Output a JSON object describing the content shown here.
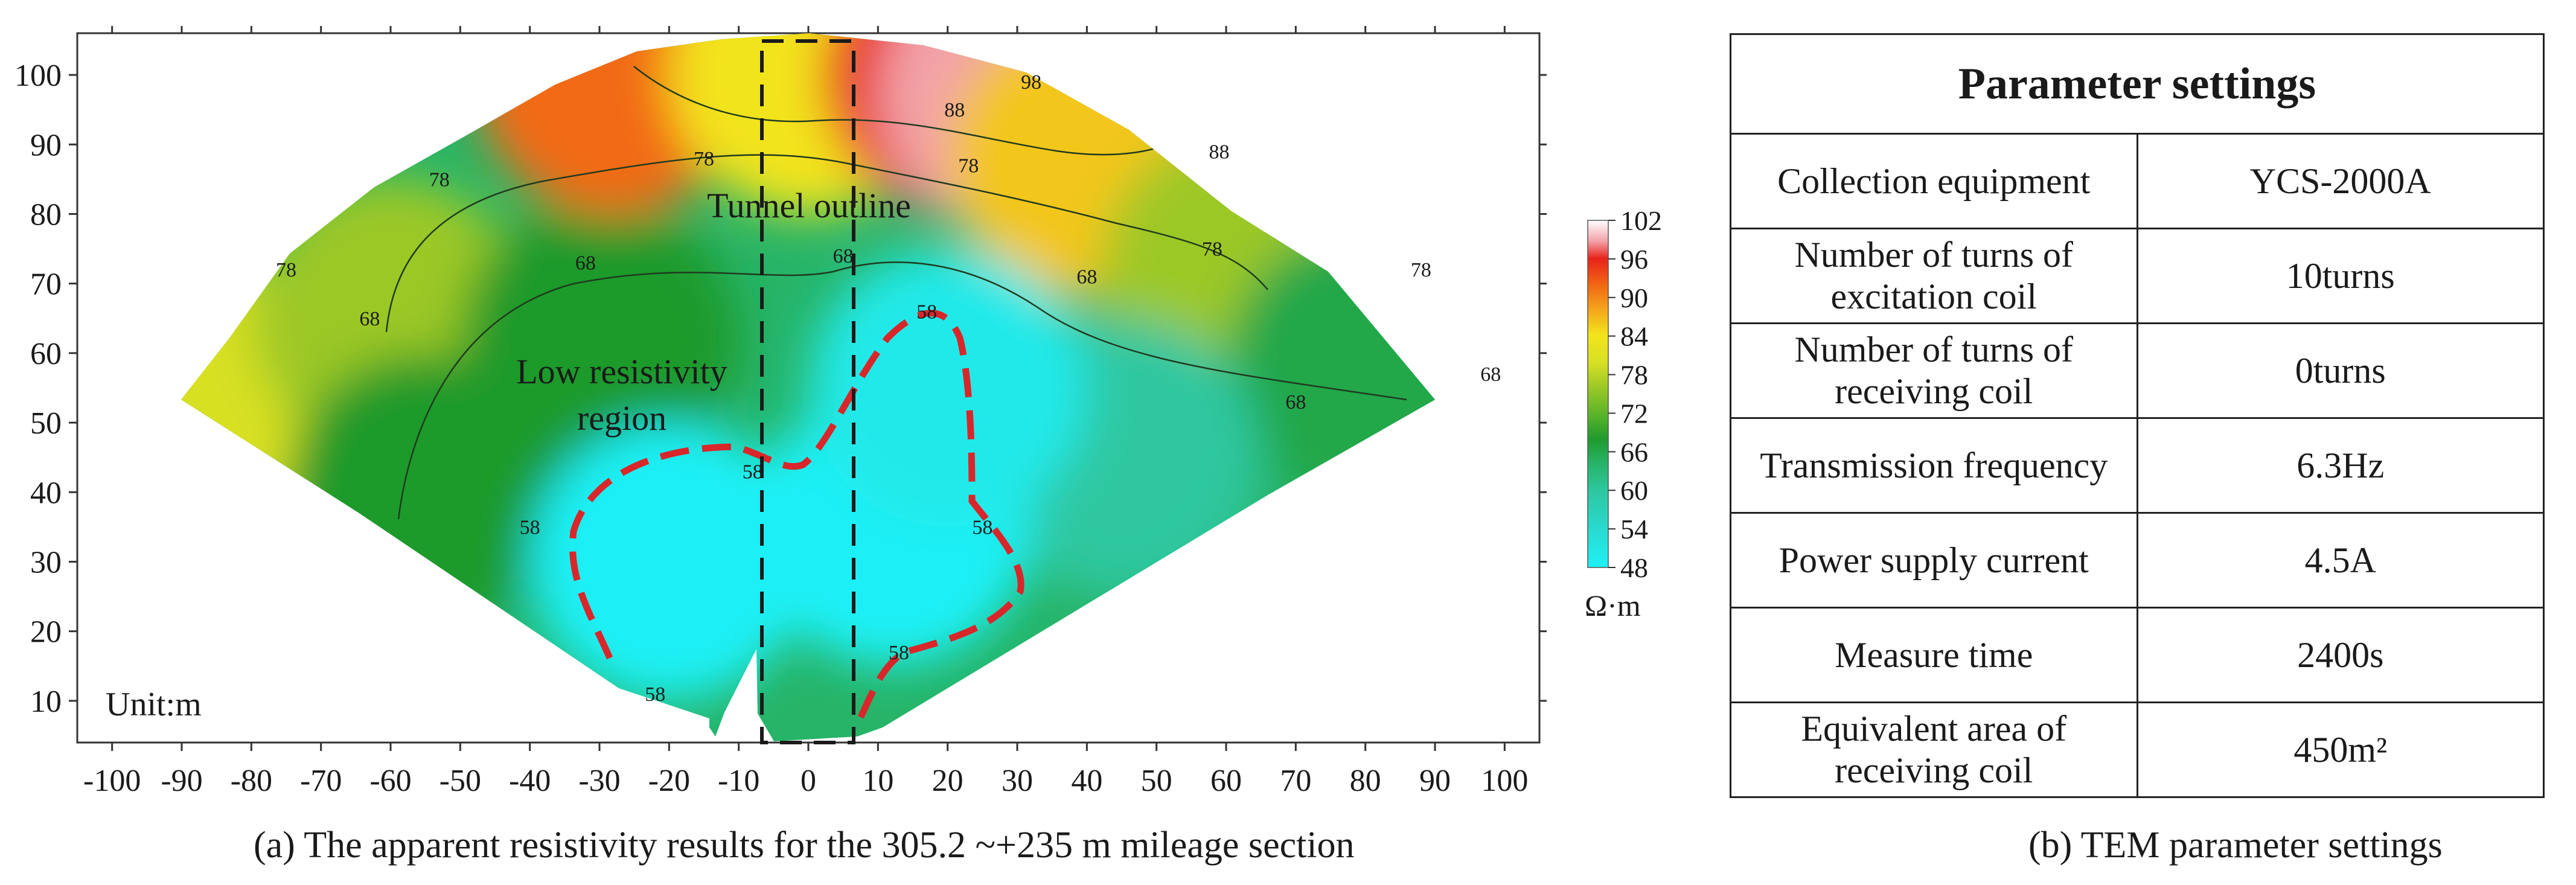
{
  "chart_data": {
    "type": "heatmap",
    "title": "(a) The apparent resistivity results for the 305.2 ~+235 m mileage section",
    "xlabel": "",
    "ylabel": "",
    "xlim": [
      -105,
      105
    ],
    "ylim": [
      4,
      106
    ],
    "x_ticks": [
      -100,
      -90,
      -80,
      -70,
      -60,
      -50,
      -40,
      -30,
      -20,
      -10,
      0,
      10,
      20,
      30,
      40,
      50,
      60,
      70,
      80,
      90,
      100
    ],
    "y_ticks": [
      10,
      20,
      30,
      40,
      50,
      60,
      70,
      80,
      90,
      100
    ],
    "unit_label": "Unit:m",
    "colorbar": {
      "unit": "Ω·m",
      "ticks": [
        102,
        96,
        90,
        84,
        78,
        72,
        66,
        60,
        54,
        48
      ],
      "min": 48,
      "max": 102,
      "colors": [
        {
          "value": 48,
          "color": "#1ff0f6"
        },
        {
          "value": 54,
          "color": "#2adad0"
        },
        {
          "value": 60,
          "color": "#2dc7a0"
        },
        {
          "value": 64,
          "color": "#27b468"
        },
        {
          "value": 68,
          "color": "#1f9a2c"
        },
        {
          "value": 72,
          "color": "#5ab42a"
        },
        {
          "value": 76,
          "color": "#9cc826"
        },
        {
          "value": 80,
          "color": "#d8e024"
        },
        {
          "value": 84,
          "color": "#f2e41c"
        },
        {
          "value": 88,
          "color": "#f4a81c"
        },
        {
          "value": 92,
          "color": "#f26a14"
        },
        {
          "value": 96,
          "color": "#e8221a"
        },
        {
          "value": 99,
          "color": "#f2a2a8"
        },
        {
          "value": 102,
          "color": "#ffffff"
        }
      ]
    },
    "sample_values": [
      {
        "x": -88,
        "y": 54,
        "value": 80
      },
      {
        "x": -60,
        "y": 65,
        "value": 76
      },
      {
        "x": -55,
        "y": 40,
        "value": 68
      },
      {
        "x": -30,
        "y": 62,
        "value": 68
      },
      {
        "x": -28,
        "y": 100,
        "value": 92
      },
      {
        "x": 0,
        "y": 100,
        "value": 84
      },
      {
        "x": 22,
        "y": 100,
        "value": 96
      },
      {
        "x": 30,
        "y": 97,
        "value": 99
      },
      {
        "x": 40,
        "y": 88,
        "value": 86
      },
      {
        "x": 62,
        "y": 72,
        "value": 76
      },
      {
        "x": 80,
        "y": 58,
        "value": 66
      },
      {
        "x": 45,
        "y": 45,
        "value": 60
      },
      {
        "x": -20,
        "y": 30,
        "value": 48
      },
      {
        "x": 12,
        "y": 35,
        "value": 48
      },
      {
        "x": 20,
        "y": 55,
        "value": 50
      }
    ],
    "contour_labels": [
      {
        "x": 32,
        "y": 98,
        "text": "98"
      },
      {
        "x": 21,
        "y": 94,
        "text": "88"
      },
      {
        "x": 59,
        "y": 88,
        "text": "88"
      },
      {
        "x": -53,
        "y": 84,
        "text": "78"
      },
      {
        "x": -15,
        "y": 87,
        "text": "78"
      },
      {
        "x": 23,
        "y": 86,
        "text": "78"
      },
      {
        "x": 58,
        "y": 74,
        "text": "78"
      },
      {
        "x": 88,
        "y": 71,
        "text": "78"
      },
      {
        "x": -75,
        "y": 71,
        "text": "78"
      },
      {
        "x": -32,
        "y": 72,
        "text": "68"
      },
      {
        "x": 5,
        "y": 73,
        "text": "68"
      },
      {
        "x": 40,
        "y": 70,
        "text": "68"
      },
      {
        "x": -63,
        "y": 64,
        "text": "68"
      },
      {
        "x": 70,
        "y": 52,
        "text": "68"
      },
      {
        "x": 98,
        "y": 56,
        "text": "68"
      },
      {
        "x": 17,
        "y": 65,
        "text": "58"
      },
      {
        "x": -8,
        "y": 42,
        "text": "58"
      },
      {
        "x": -40,
        "y": 34,
        "text": "58"
      },
      {
        "x": 25,
        "y": 34,
        "text": "58"
      },
      {
        "x": 13,
        "y": 16,
        "text": "58"
      },
      {
        "x": -22,
        "y": 10,
        "text": "58"
      }
    ],
    "annotations": [
      {
        "text": "Tunnel outline",
        "x": 0,
        "y": 81
      },
      {
        "text": "Low resistivity",
        "x": -30,
        "y": 60
      },
      {
        "text": "region",
        "x": -30,
        "y": 53
      }
    ]
  },
  "table": {
    "title": "Parameter settings",
    "rows": [
      {
        "label": "Collection equipment",
        "value": "YCS-2000A"
      },
      {
        "label": "Number of turns of excitation coil",
        "value": "10turns"
      },
      {
        "label": "Number of turns of receiving coil",
        "value": "0turns"
      },
      {
        "label": "Transmission frequency",
        "value": "6.3Hz"
      },
      {
        "label": "Power supply current",
        "value": "4.5A"
      },
      {
        "label": "Measure time",
        "value": "2400s"
      },
      {
        "label": "Equivalent area of receiving coil",
        "value": "450m²"
      }
    ],
    "caption": "(b) TEM parameter settings"
  }
}
